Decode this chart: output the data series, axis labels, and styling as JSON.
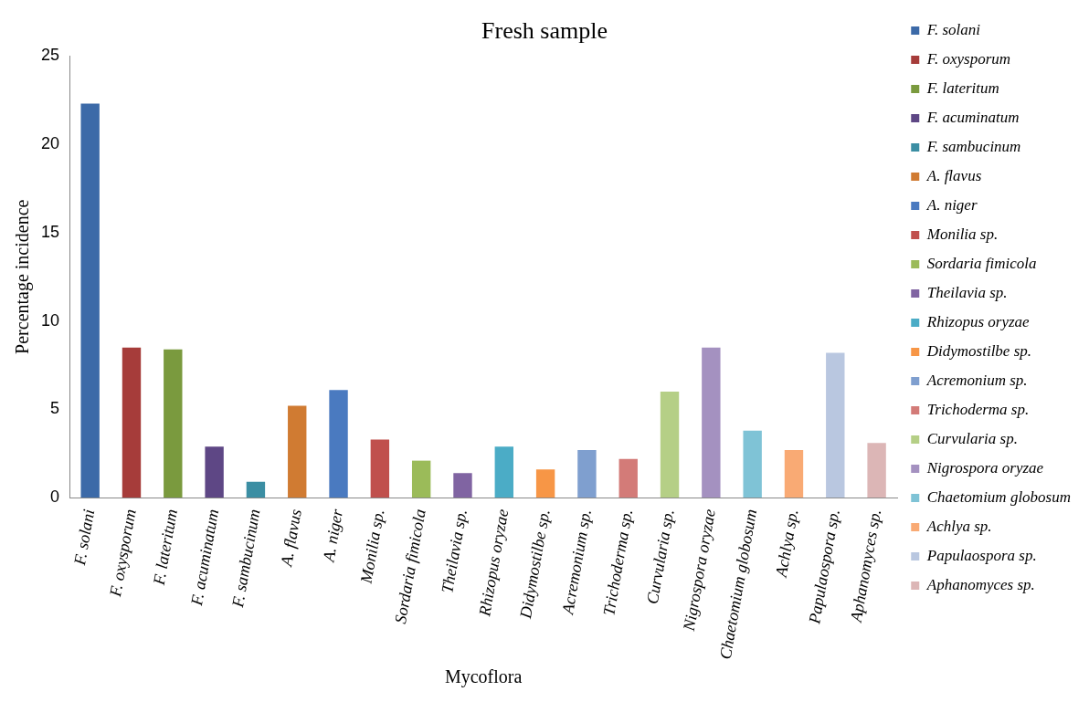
{
  "chart_data": {
    "type": "bar",
    "title": "Fresh sample",
    "xlabel": "Mycoflora",
    "ylabel": "Percentage incidence",
    "categories": [
      "F. solani",
      "F. oxysporum",
      "F. lateritum",
      "F. acuminatum",
      "F. sambucinum",
      "A. flavus",
      "A. niger",
      "Monilia sp.",
      "Sordaria fimicola",
      "Theilavia sp.",
      "Rhizopus oryzae",
      "Didymostilbe sp.",
      "Acremonium sp.",
      "Trichoderma sp.",
      "Curvularia sp.",
      "Nigrospora oryzae",
      "Chaetomium globosum",
      "Achlya sp.",
      "Papulaospora sp.",
      "Aphanomyces sp."
    ],
    "series": [
      {
        "name": "F. solani",
        "color": "#3c6aa8",
        "values": [
          22.3,
          null,
          null,
          null,
          null,
          null,
          null,
          null,
          null,
          null,
          null,
          null,
          null,
          null,
          null,
          null,
          null,
          null,
          null,
          null
        ]
      },
      {
        "name": "F. oxysporum",
        "color": "#a63c3a",
        "values": [
          null,
          8.5,
          null,
          null,
          null,
          null,
          null,
          null,
          null,
          null,
          null,
          null,
          null,
          null,
          null,
          null,
          null,
          null,
          null,
          null
        ]
      },
      {
        "name": "F. lateritum",
        "color": "#7a9a3e",
        "values": [
          null,
          null,
          8.4,
          null,
          null,
          null,
          null,
          null,
          null,
          null,
          null,
          null,
          null,
          null,
          null,
          null,
          null,
          null,
          null,
          null
        ]
      },
      {
        "name": "F. acuminatum",
        "color": "#5e4785",
        "values": [
          null,
          null,
          null,
          2.9,
          null,
          null,
          null,
          null,
          null,
          null,
          null,
          null,
          null,
          null,
          null,
          null,
          null,
          null,
          null,
          null
        ]
      },
      {
        "name": "F. sambucinum",
        "color": "#3b8ea3",
        "values": [
          null,
          null,
          null,
          null,
          0.9,
          null,
          null,
          null,
          null,
          null,
          null,
          null,
          null,
          null,
          null,
          null,
          null,
          null,
          null,
          null
        ]
      },
      {
        "name": "A. flavus",
        "color": "#d07b32",
        "values": [
          null,
          null,
          null,
          null,
          null,
          5.2,
          null,
          null,
          null,
          null,
          null,
          null,
          null,
          null,
          null,
          null,
          null,
          null,
          null,
          null
        ]
      },
      {
        "name": "A. niger",
        "color": "#4a7ac0",
        "values": [
          null,
          null,
          null,
          null,
          null,
          null,
          6.1,
          null,
          null,
          null,
          null,
          null,
          null,
          null,
          null,
          null,
          null,
          null,
          null,
          null
        ]
      },
      {
        "name": "Monilia sp.",
        "color": "#c0504d",
        "values": [
          null,
          null,
          null,
          null,
          null,
          null,
          null,
          3.3,
          null,
          null,
          null,
          null,
          null,
          null,
          null,
          null,
          null,
          null,
          null,
          null
        ]
      },
      {
        "name": "Sordaria fimicola",
        "color": "#9bbb59",
        "values": [
          null,
          null,
          null,
          null,
          null,
          null,
          null,
          null,
          2.1,
          null,
          null,
          null,
          null,
          null,
          null,
          null,
          null,
          null,
          null,
          null
        ]
      },
      {
        "name": "Theilavia sp.",
        "color": "#8064a2",
        "values": [
          null,
          null,
          null,
          null,
          null,
          null,
          null,
          null,
          null,
          1.4,
          null,
          null,
          null,
          null,
          null,
          null,
          null,
          null,
          null,
          null
        ]
      },
      {
        "name": "Rhizopus oryzae",
        "color": "#4bacc6",
        "values": [
          null,
          null,
          null,
          null,
          null,
          null,
          null,
          null,
          null,
          null,
          2.9,
          null,
          null,
          null,
          null,
          null,
          null,
          null,
          null,
          null
        ]
      },
      {
        "name": "Didymostilbe sp.",
        "color": "#f79646",
        "values": [
          null,
          null,
          null,
          null,
          null,
          null,
          null,
          null,
          null,
          null,
          null,
          1.6,
          null,
          null,
          null,
          null,
          null,
          null,
          null,
          null
        ]
      },
      {
        "name": "Acremonium sp.",
        "color": "#7f9fcf",
        "values": [
          null,
          null,
          null,
          null,
          null,
          null,
          null,
          null,
          null,
          null,
          null,
          null,
          2.7,
          null,
          null,
          null,
          null,
          null,
          null,
          null
        ]
      },
      {
        "name": "Trichoderma sp.",
        "color": "#d37b78",
        "values": [
          null,
          null,
          null,
          null,
          null,
          null,
          null,
          null,
          null,
          null,
          null,
          null,
          null,
          2.2,
          null,
          null,
          null,
          null,
          null,
          null
        ]
      },
      {
        "name": "Curvularia sp.",
        "color": "#b5cf86",
        "values": [
          null,
          null,
          null,
          null,
          null,
          null,
          null,
          null,
          null,
          null,
          null,
          null,
          null,
          null,
          6,
          null,
          null,
          null,
          null,
          null
        ]
      },
      {
        "name": "Nigrospora oryzae",
        "color": "#a491c0",
        "values": [
          null,
          null,
          null,
          null,
          null,
          null,
          null,
          null,
          null,
          null,
          null,
          null,
          null,
          null,
          null,
          8.5,
          null,
          null,
          null,
          null
        ]
      },
      {
        "name": "Chaetomium globosum",
        "color": "#7fc3d6",
        "values": [
          null,
          null,
          null,
          null,
          null,
          null,
          null,
          null,
          null,
          null,
          null,
          null,
          null,
          null,
          null,
          null,
          3.8,
          null,
          null,
          null
        ]
      },
      {
        "name": "Achlya sp.",
        "color": "#f9aa74",
        "values": [
          null,
          null,
          null,
          null,
          null,
          null,
          null,
          null,
          null,
          null,
          null,
          null,
          null,
          null,
          null,
          null,
          null,
          2.7,
          null,
          null
        ]
      },
      {
        "name": "Papulaospora sp.",
        "color": "#b9c7e0",
        "values": [
          null,
          null,
          null,
          null,
          null,
          null,
          null,
          null,
          null,
          null,
          null,
          null,
          null,
          null,
          null,
          null,
          null,
          null,
          8.2,
          null
        ]
      },
      {
        "name": "Aphanomyces sp.",
        "color": "#dcb6b6",
        "values": [
          null,
          null,
          null,
          null,
          null,
          null,
          null,
          null,
          null,
          null,
          null,
          null,
          null,
          null,
          null,
          null,
          null,
          null,
          null,
          3.1
        ]
      }
    ],
    "ylim": [
      0,
      25
    ],
    "yticks": [
      0,
      5,
      10,
      15,
      20,
      25
    ],
    "legend": "right"
  }
}
